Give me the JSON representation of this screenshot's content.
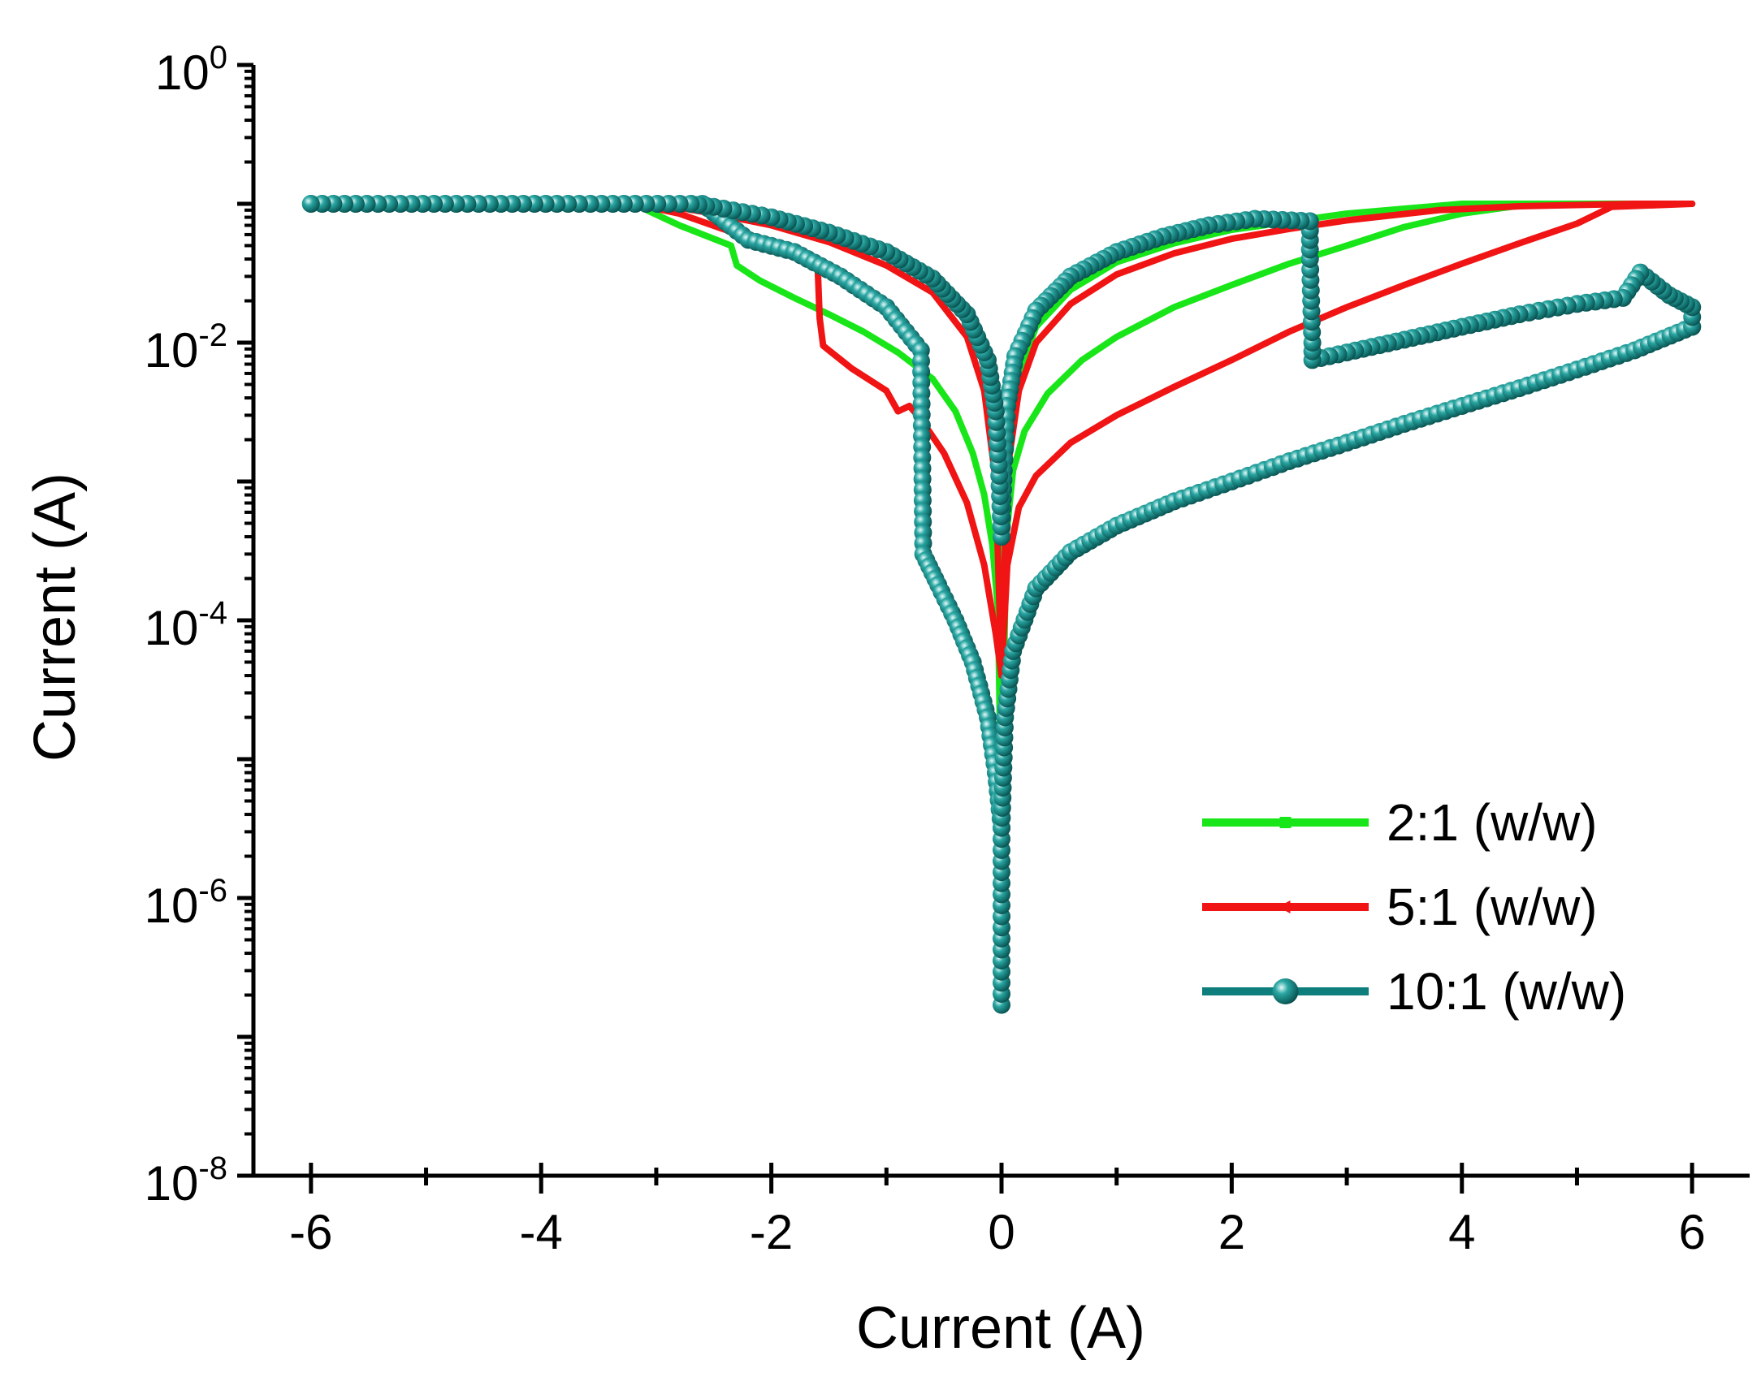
{
  "chart_data": {
    "type": "line",
    "title": "",
    "xlabel": "Current (A)",
    "ylabel": "Current (A)",
    "xlim": [
      -6.5,
      6.5
    ],
    "ylim_log10": [
      -8,
      0
    ],
    "yscale": "log",
    "grid": false,
    "legend_position": "lower-right",
    "x_ticks": [
      -6,
      -4,
      -2,
      0,
      2,
      4,
      6
    ],
    "x_tick_labels": [
      "-6",
      "-4",
      "-2",
      "0",
      "2",
      "4",
      "6"
    ],
    "y_tick_exponents": [
      0,
      -2,
      -4,
      -6,
      -8
    ],
    "y_tick_base": "10",
    "y_tick_powers": [
      "0",
      "-2",
      "-4",
      "-6",
      "-8"
    ],
    "series": [
      {
        "name": "2:1 (w/w)",
        "color": "#19e619",
        "marker": "square",
        "segments": [
          [
            [
              -6,
              0.1
            ],
            [
              -3.2,
              0.1
            ],
            [
              -2.8,
              0.07
            ],
            [
              -2.35,
              0.05
            ],
            [
              -2.3,
              0.036
            ],
            [
              -2.1,
              0.028
            ],
            [
              -1.8,
              0.021
            ],
            [
              -1.5,
              0.016
            ],
            [
              -1.2,
              0.012
            ],
            [
              -0.9,
              0.0085
            ],
            [
              -0.6,
              0.0055
            ],
            [
              -0.4,
              0.0032
            ],
            [
              -0.25,
              0.0016
            ],
            [
              -0.15,
              0.0008
            ],
            [
              -0.08,
              0.00035
            ],
            [
              -0.03,
              0.00012
            ],
            [
              0,
              3e-06
            ]
          ],
          [
            [
              0,
              3e-06
            ],
            [
              0.04,
              0.0004
            ],
            [
              0.1,
              0.0012
            ],
            [
              0.2,
              0.0023
            ],
            [
              0.4,
              0.0043
            ],
            [
              0.7,
              0.0075
            ],
            [
              1,
              0.011
            ],
            [
              1.5,
              0.018
            ],
            [
              2,
              0.026
            ],
            [
              2.5,
              0.037
            ],
            [
              3,
              0.05
            ],
            [
              3.5,
              0.068
            ],
            [
              4,
              0.085
            ],
            [
              4.5,
              0.097
            ],
            [
              5,
              0.1
            ],
            [
              6,
              0.1
            ]
          ],
          [
            [
              6,
              0.1
            ],
            [
              4,
              0.1
            ],
            [
              3,
              0.085
            ],
            [
              2,
              0.065
            ],
            [
              1.5,
              0.052
            ],
            [
              1,
              0.038
            ],
            [
              0.6,
              0.024
            ],
            [
              0.3,
              0.013
            ],
            [
              0.15,
              0.006
            ],
            [
              0.07,
              0.002
            ],
            [
              0.02,
              0.0005
            ],
            [
              0,
              3e-06
            ]
          ],
          [
            [
              0,
              3e-06
            ],
            [
              -0.02,
              0.0006
            ],
            [
              -0.07,
              0.0025
            ],
            [
              -0.15,
              0.0075
            ],
            [
              -0.3,
              0.015
            ],
            [
              -0.6,
              0.028
            ],
            [
              -1,
              0.042
            ],
            [
              -1.5,
              0.06
            ],
            [
              -2,
              0.075
            ],
            [
              -2.5,
              0.09
            ],
            [
              -3,
              0.1
            ],
            [
              -6,
              0.1
            ]
          ]
        ]
      },
      {
        "name": "5:1 (w/w)",
        "color": "#f01414",
        "marker": "triangle-left",
        "segments": [
          [
            [
              -6,
              0.1
            ],
            [
              -3.2,
              0.1
            ],
            [
              -2.8,
              0.085
            ],
            [
              -2.4,
              0.065
            ],
            [
              -2.0,
              0.05
            ],
            [
              -1.6,
              0.04
            ],
            [
              -1.58,
              0.015
            ],
            [
              -1.55,
              0.0095
            ],
            [
              -1.3,
              0.0065
            ],
            [
              -1.0,
              0.0045
            ],
            [
              -0.9,
              0.0032
            ],
            [
              -0.8,
              0.0035
            ],
            [
              -0.7,
              0.0028
            ],
            [
              -0.5,
              0.0016
            ],
            [
              -0.3,
              0.0007
            ],
            [
              -0.15,
              0.00025
            ],
            [
              -0.05,
              8e-05
            ],
            [
              0,
              4e-05
            ]
          ],
          [
            [
              0,
              4e-05
            ],
            [
              0.05,
              0.00025
            ],
            [
              0.15,
              0.00065
            ],
            [
              0.3,
              0.0011
            ],
            [
              0.6,
              0.0019
            ],
            [
              1,
              0.003
            ],
            [
              1.5,
              0.0048
            ],
            [
              2,
              0.0075
            ],
            [
              2.5,
              0.012
            ],
            [
              3,
              0.018
            ],
            [
              3.5,
              0.026
            ],
            [
              4,
              0.037
            ],
            [
              4.5,
              0.052
            ],
            [
              5,
              0.072
            ],
            [
              5.3,
              0.095
            ],
            [
              6,
              0.1
            ]
          ],
          [
            [
              6,
              0.1
            ],
            [
              5.5,
              0.1
            ],
            [
              4.5,
              0.096
            ],
            [
              3.8,
              0.09
            ],
            [
              3,
              0.076
            ],
            [
              2.5,
              0.066
            ],
            [
              2,
              0.056
            ],
            [
              1.5,
              0.044
            ],
            [
              1,
              0.031
            ],
            [
              0.6,
              0.019
            ],
            [
              0.3,
              0.01
            ],
            [
              0.15,
              0.0045
            ],
            [
              0.05,
              0.0012
            ],
            [
              0,
              4e-05
            ]
          ],
          [
            [
              0,
              4e-05
            ],
            [
              -0.05,
              0.001
            ],
            [
              -0.15,
              0.0045
            ],
            [
              -0.3,
              0.011
            ],
            [
              -0.6,
              0.023
            ],
            [
              -1,
              0.036
            ],
            [
              -1.5,
              0.053
            ],
            [
              -2,
              0.07
            ],
            [
              -2.5,
              0.085
            ],
            [
              -3,
              0.1
            ],
            [
              -6,
              0.1
            ]
          ]
        ]
      },
      {
        "name": "10:1 (w/w)",
        "color": "#0d7e7c",
        "marker": "sphere",
        "segments": [
          [
            [
              -6,
              0.1
            ],
            [
              -2.6,
              0.1
            ],
            [
              -2.2,
              0.055
            ],
            [
              -1.8,
              0.045
            ],
            [
              -1.4,
              0.03
            ],
            [
              -1.0,
              0.018
            ],
            [
              -0.7,
              0.0088
            ],
            [
              -0.68,
              0.0003
            ],
            [
              -0.55,
              0.00018
            ],
            [
              -0.4,
              0.0001
            ],
            [
              -0.25,
              5e-05
            ],
            [
              -0.12,
              2e-05
            ],
            [
              -0.05,
              8e-06
            ],
            [
              0,
              3.2e-06
            ]
          ],
          [
            [
              0,
              1.7e-07
            ],
            [
              0,
              3.2e-06
            ],
            [
              0.03,
              2e-05
            ],
            [
              0.1,
              6e-05
            ],
            [
              0.3,
              0.00017
            ],
            [
              0.6,
              0.00031
            ],
            [
              1,
              0.00048
            ],
            [
              1.5,
              0.00072
            ],
            [
              2,
              0.001
            ],
            [
              2.5,
              0.0014
            ],
            [
              3,
              0.0019
            ],
            [
              3.5,
              0.0026
            ],
            [
              4,
              0.0035
            ],
            [
              4.5,
              0.0047
            ],
            [
              5,
              0.0064
            ],
            [
              5.5,
              0.0088
            ],
            [
              6,
              0.013
            ]
          ],
          [
            [
              6,
              0.013
            ],
            [
              6,
              0.018
            ],
            [
              5.8,
              0.022
            ],
            [
              5.55,
              0.032
            ],
            [
              5.4,
              0.021
            ],
            [
              5,
              0.019
            ],
            [
              4.5,
              0.016
            ],
            [
              4,
              0.013
            ],
            [
              3.5,
              0.0105
            ],
            [
              3,
              0.0085
            ],
            [
              2.7,
              0.0075
            ],
            [
              2.7,
              0.01
            ],
            [
              2.68,
              0.04
            ],
            [
              2.68,
              0.075
            ],
            [
              2.2,
              0.078
            ],
            [
              1.8,
              0.07
            ],
            [
              1.4,
              0.058
            ],
            [
              1,
              0.045
            ],
            [
              0.6,
              0.03
            ],
            [
              0.3,
              0.017
            ],
            [
              0.12,
              0.008
            ],
            [
              0.05,
              0.0035
            ],
            [
              0.02,
              0.0012
            ],
            [
              0,
              0.0004
            ]
          ],
          [
            [
              0,
              0.0004
            ],
            [
              -0.02,
              0.0011
            ],
            [
              -0.05,
              0.0032
            ],
            [
              -0.12,
              0.0075
            ],
            [
              -0.3,
              0.016
            ],
            [
              -0.6,
              0.029
            ],
            [
              -1,
              0.045
            ],
            [
              -1.5,
              0.062
            ],
            [
              -2,
              0.08
            ],
            [
              -2.5,
              0.095
            ],
            [
              -2.7,
              0.1
            ],
            [
              -6,
              0.1
            ]
          ]
        ]
      }
    ]
  }
}
